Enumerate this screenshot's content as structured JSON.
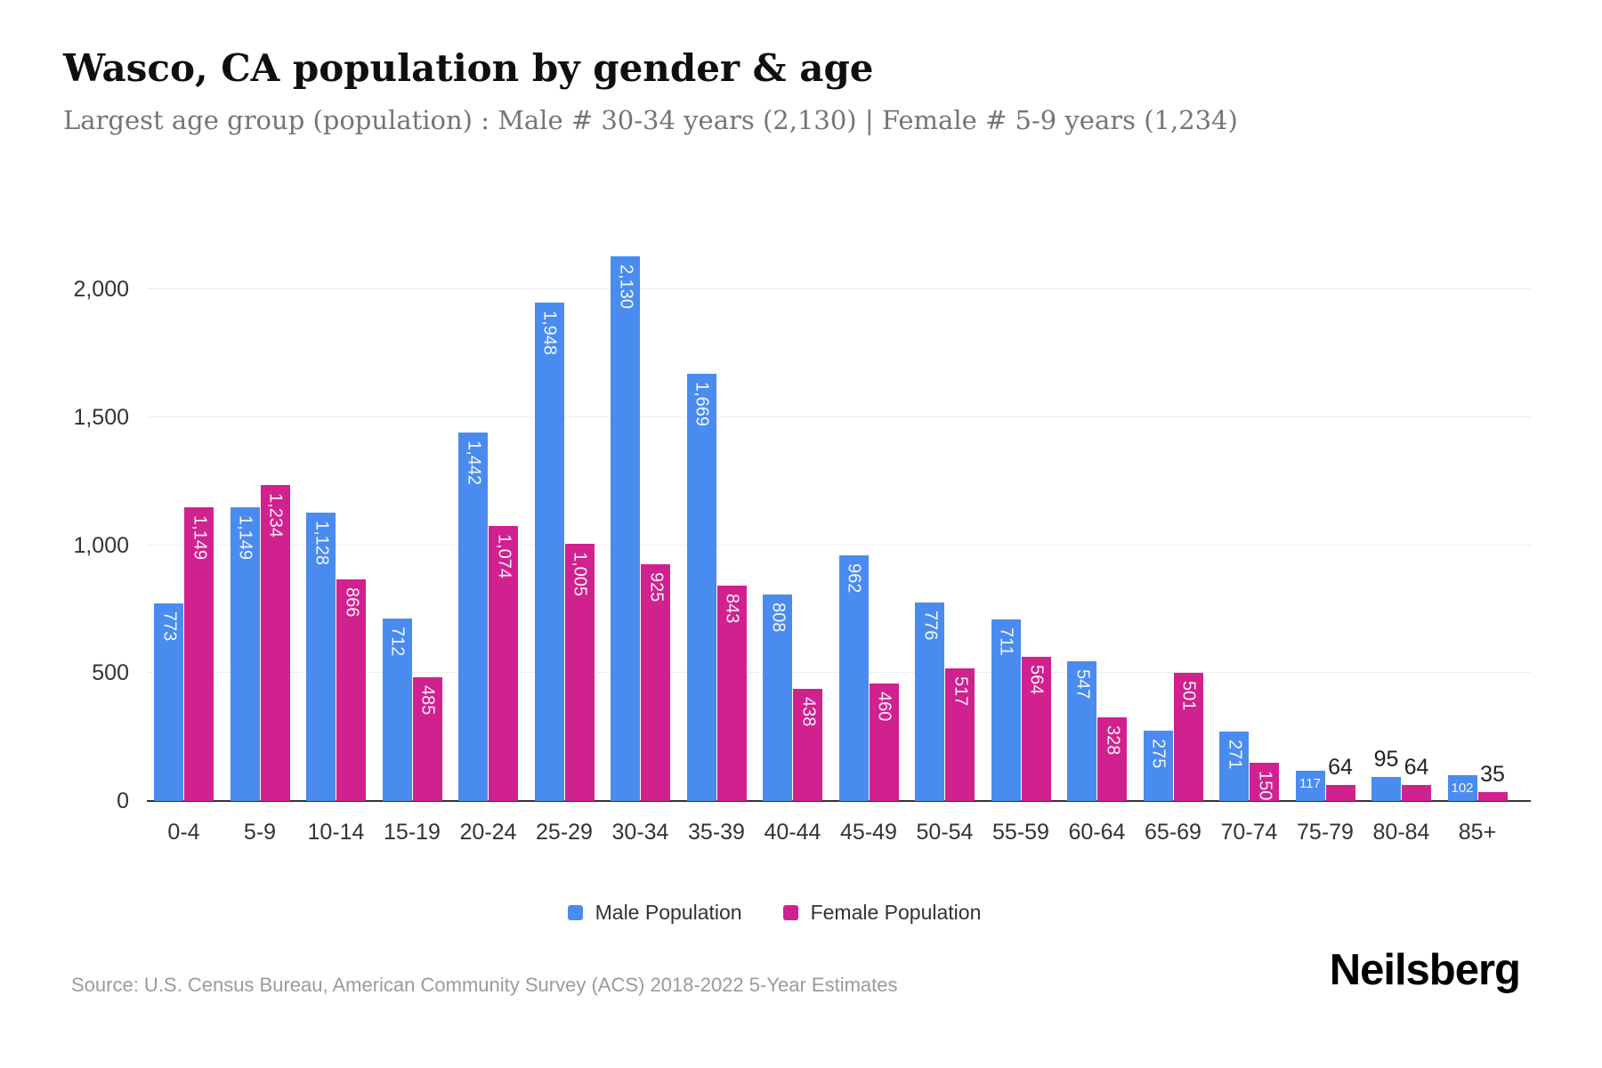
{
  "header": {
    "title": "Wasco, CA population by gender & age",
    "subtitle": "Largest age group (population) : Male # 30-34 years (2,130) | Female # 5-9 years (1,234)"
  },
  "legend": {
    "items": [
      {
        "label": "Male Population",
        "color": "#4a8bf0"
      },
      {
        "label": "Female Population",
        "color": "#d0218f"
      }
    ]
  },
  "footer": {
    "source": "Source: U.S. Census Bureau, American Community Survey (ACS) 2018-2022 5-Year Estimates",
    "brand": "Neilsberg"
  },
  "chart_data": {
    "type": "bar",
    "title": "Wasco, CA population by gender & age",
    "categories": [
      "0-4",
      "5-9",
      "10-14",
      "15-19",
      "20-24",
      "25-29",
      "30-34",
      "35-39",
      "40-44",
      "45-49",
      "50-54",
      "55-59",
      "60-64",
      "65-69",
      "70-74",
      "75-79",
      "80-84",
      "85+"
    ],
    "series": [
      {
        "name": "Male Population",
        "color": "#4a8bf0",
        "values": [
          773,
          1149,
          1128,
          712,
          1442,
          1948,
          2130,
          1669,
          808,
          962,
          776,
          711,
          547,
          275,
          271,
          117,
          95,
          102
        ]
      },
      {
        "name": "Female Population",
        "color": "#d0218f",
        "values": [
          1149,
          1234,
          866,
          485,
          1074,
          1005,
          925,
          843,
          438,
          460,
          517,
          564,
          328,
          501,
          150,
          64,
          64,
          35
        ]
      }
    ],
    "xlabel": "",
    "ylabel": "",
    "ylim": [
      0,
      2130
    ],
    "yticks": [
      0,
      500,
      1000,
      1500,
      2000
    ],
    "grid": "horizontal",
    "legend_position": "bottom",
    "value_labels": true
  }
}
